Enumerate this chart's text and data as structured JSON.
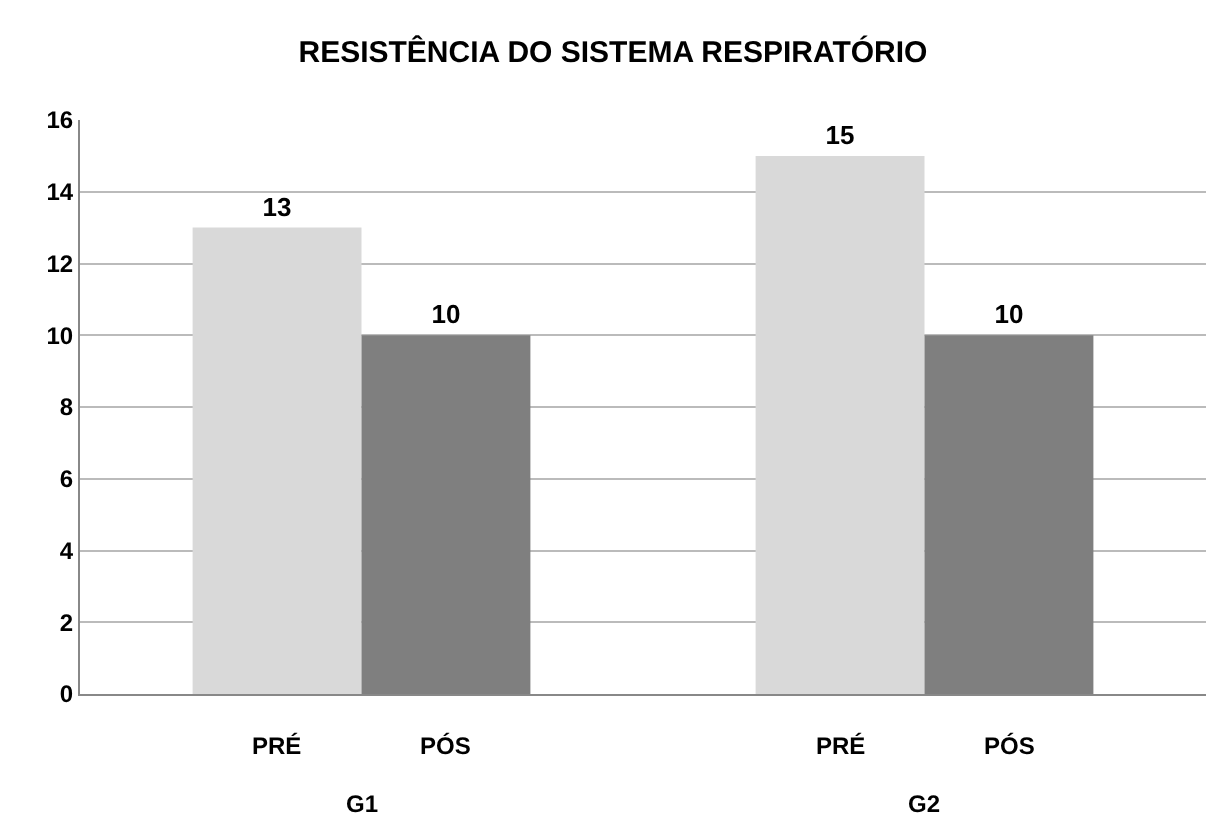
{
  "chart_data": {
    "type": "bar",
    "title": "RESISTÊNCIA DO SISTEMA RESPIRATÓRIO",
    "categories": [
      "G1",
      "G2"
    ],
    "series": [
      {
        "name": "PRÉ",
        "color": "#d9d9d9",
        "values": [
          13,
          15
        ]
      },
      {
        "name": "PÓS",
        "color": "#7f7f7f",
        "values": [
          10,
          10
        ]
      }
    ],
    "ylim": [
      0,
      16
    ],
    "yticks": [
      0,
      2,
      4,
      6,
      8,
      10,
      12,
      14,
      16
    ],
    "grid": "y",
    "data_labels": true
  }
}
